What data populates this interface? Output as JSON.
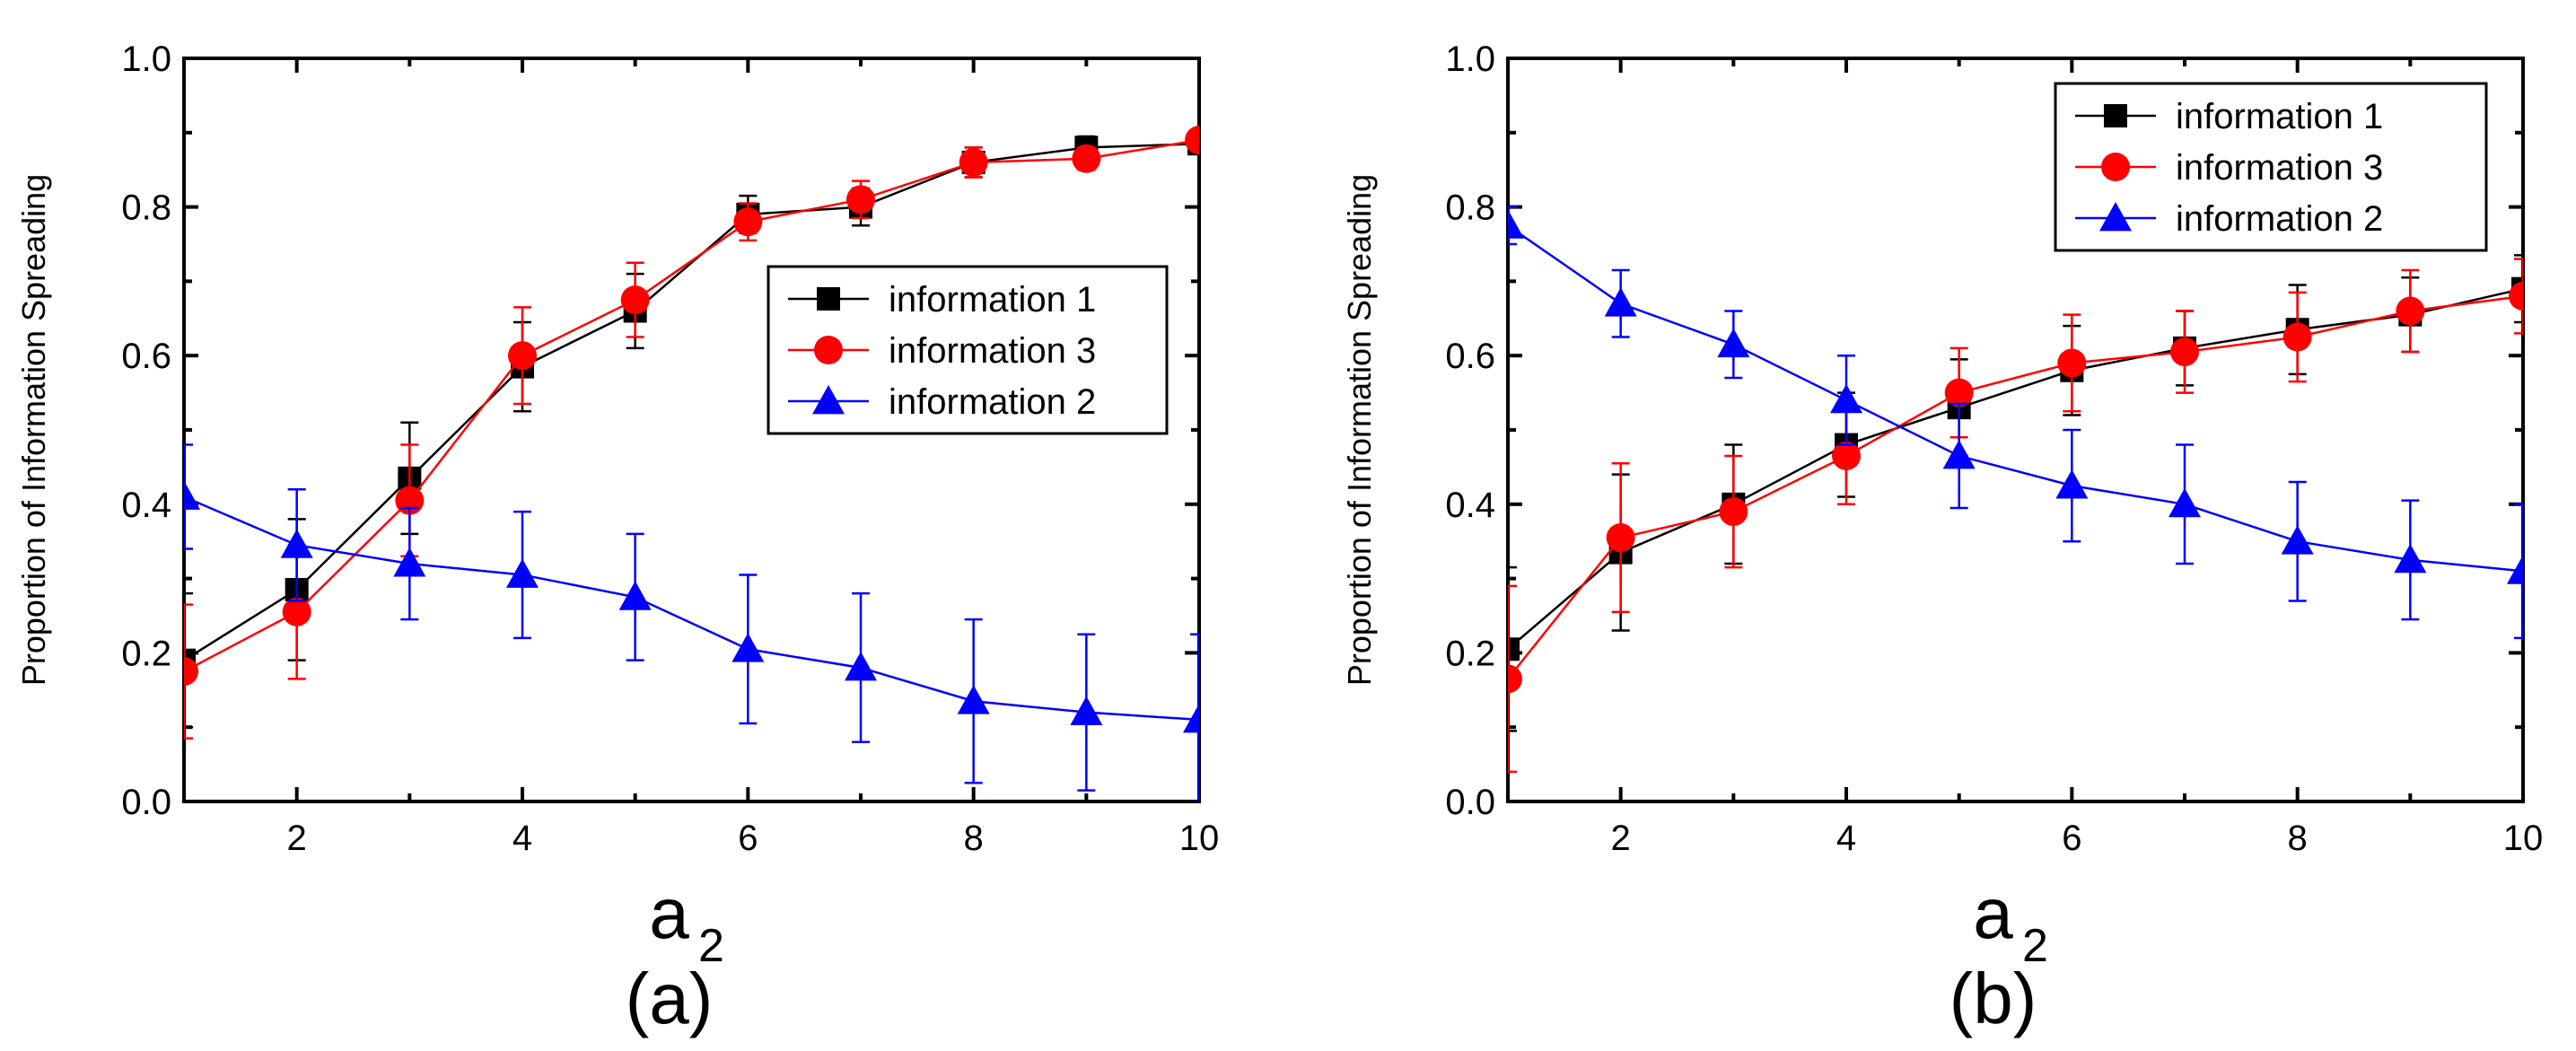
{
  "chart_data": [
    {
      "type": "line",
      "panel_label": "(a)",
      "xlabel": "a",
      "xlabel_sub": "2",
      "ylabel": "Proportion of Information Spreading",
      "xlim": [
        1,
        10
      ],
      "ylim": [
        0,
        1
      ],
      "xticks": [
        2,
        4,
        6,
        8,
        10
      ],
      "yticks": [
        "0.0",
        "0.2",
        "0.4",
        "0.6",
        "0.8",
        "1.0"
      ],
      "legend_position": "center-right",
      "x": [
        1,
        2,
        3,
        4,
        5,
        6,
        7,
        8,
        9,
        10
      ],
      "series": [
        {
          "name": "information 1",
          "color": "#000000",
          "marker": "square",
          "values": [
            0.19,
            0.285,
            0.435,
            0.585,
            0.66,
            0.79,
            0.8,
            0.86,
            0.88,
            0.885
          ],
          "errors": [
            0.09,
            0.095,
            0.075,
            0.06,
            0.05,
            0.025,
            0.025,
            0.02,
            0.015,
            0.01
          ]
        },
        {
          "name": "information 3",
          "color": "#ff0000",
          "marker": "circle",
          "values": [
            0.175,
            0.255,
            0.405,
            0.6,
            0.675,
            0.78,
            0.81,
            0.86,
            0.865,
            0.89
          ],
          "errors": [
            0.09,
            0.09,
            0.075,
            0.065,
            0.05,
            0.025,
            0.025,
            0.02,
            0.015,
            0.01
          ]
        },
        {
          "name": "information 2",
          "color": "#0000ff",
          "marker": "triangle",
          "values": [
            0.41,
            0.345,
            0.32,
            0.305,
            0.275,
            0.205,
            0.18,
            0.135,
            0.12,
            0.11
          ],
          "errors": [
            0.07,
            0.075,
            0.075,
            0.085,
            0.085,
            0.1,
            0.1,
            0.11,
            0.105,
            0.115
          ]
        }
      ]
    },
    {
      "type": "line",
      "panel_label": "(b)",
      "xlabel": "a",
      "xlabel_sub": "2",
      "ylabel": "Proportion of Information Spreading",
      "xlim": [
        1,
        10
      ],
      "ylim": [
        0,
        1
      ],
      "xticks": [
        2,
        4,
        6,
        8,
        10
      ],
      "yticks": [
        "0.0",
        "0.2",
        "0.4",
        "0.6",
        "0.8",
        "1.0"
      ],
      "legend_position": "top-right",
      "x": [
        1,
        2,
        3,
        4,
        5,
        6,
        7,
        8,
        9,
        10
      ],
      "series": [
        {
          "name": "information 1",
          "color": "#000000",
          "marker": "square",
          "values": [
            0.205,
            0.335,
            0.4,
            0.48,
            0.53,
            0.58,
            0.61,
            0.635,
            0.655,
            0.69
          ],
          "errors": [
            0.11,
            0.105,
            0.08,
            0.07,
            0.065,
            0.06,
            0.05,
            0.06,
            0.05,
            0.045
          ]
        },
        {
          "name": "information 3",
          "color": "#ff0000",
          "marker": "circle",
          "values": [
            0.165,
            0.355,
            0.39,
            0.465,
            0.55,
            0.59,
            0.605,
            0.625,
            0.66,
            0.68
          ],
          "errors": [
            0.125,
            0.1,
            0.075,
            0.065,
            0.06,
            0.065,
            0.055,
            0.06,
            0.055,
            0.05
          ]
        },
        {
          "name": "information 2",
          "color": "#0000ff",
          "marker": "triangle",
          "values": [
            0.775,
            0.67,
            0.615,
            0.54,
            0.465,
            0.425,
            0.4,
            0.35,
            0.325,
            0.31
          ],
          "errors": [
            0.025,
            0.045,
            0.045,
            0.06,
            0.07,
            0.075,
            0.08,
            0.08,
            0.08,
            0.09
          ]
        }
      ]
    }
  ]
}
